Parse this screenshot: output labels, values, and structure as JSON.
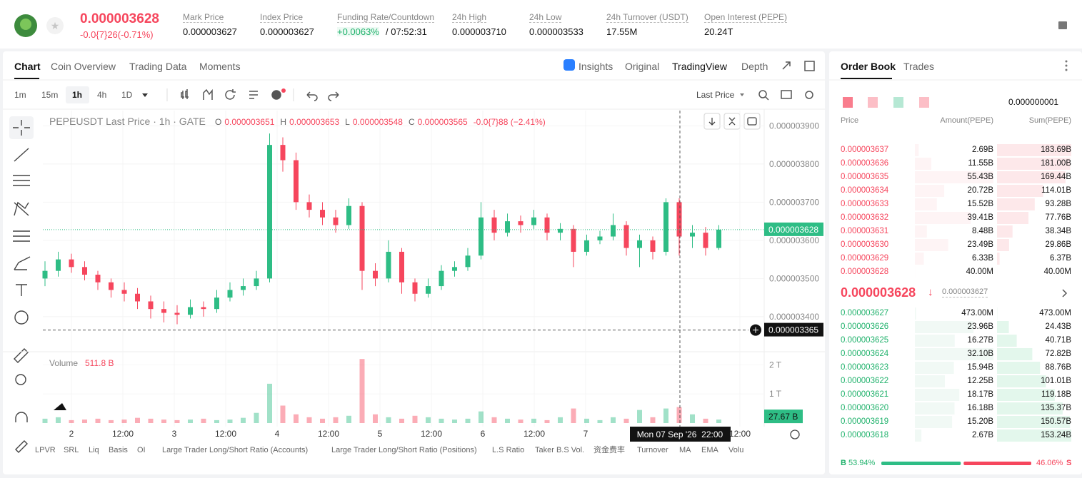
{
  "header": {
    "price": "0.000003628",
    "change": "-0.0{7}26(-0.71%)",
    "stats": [
      {
        "label": "Mark Price",
        "value": "0.000003627"
      },
      {
        "label": "Index Price",
        "value": "0.000003627"
      },
      {
        "label": "Funding Rate/Countdown",
        "value": "+0.0063%",
        "countdown": "/ 07:52:31"
      },
      {
        "label": "24h High",
        "value": "0.000003710"
      },
      {
        "label": "24h Low",
        "value": "0.000003533"
      },
      {
        "label": "24h Turnover (USDT)",
        "value": "17.55M"
      },
      {
        "label": "Open Interest (PEPE)",
        "value": "20.24T"
      }
    ]
  },
  "tabs": [
    "Chart",
    "Coin Overview",
    "Trading Data",
    "Moments"
  ],
  "views": [
    "Insights",
    "Original",
    "TradingView",
    "Depth"
  ],
  "intervals": [
    "1m",
    "15m",
    "1h",
    "4h",
    "1D"
  ],
  "price_source": "Last Price",
  "chart": {
    "type": "candlestick",
    "title": "PEPEUSDT Last Price · 1h · GATE",
    "ohlc_labels": [
      "O",
      "H",
      "L",
      "C"
    ],
    "ohlc_values": [
      "0.000003651",
      "0.000003653",
      "0.000003548",
      "0.000003565"
    ],
    "change": "-0.0{7}88 (−2.41%)",
    "up_color": "#2ebd85",
    "down_color": "#f6465d",
    "ylim": [
      3.31e-06,
      3.94e-06
    ],
    "yticks": [
      {
        "value": 3.4e-06,
        "label": "0.000003400"
      },
      {
        "value": 3.5e-06,
        "label": "0.000003500"
      },
      {
        "value": 3.6e-06,
        "label": "0.000003600"
      },
      {
        "value": 3.7e-06,
        "label": "0.000003700"
      },
      {
        "value": 3.8e-06,
        "label": "0.000003800"
      },
      {
        "value": 3.9e-06,
        "label": "0.000003900"
      }
    ],
    "candles": [
      [
        3.5e-06,
        3.545e-06,
        3.48e-06,
        3.52e-06
      ],
      [
        3.52e-06,
        3.57e-06,
        3.505e-06,
        3.55e-06
      ],
      [
        3.55e-06,
        3.565e-06,
        3.515e-06,
        3.53e-06
      ],
      [
        3.53e-06,
        3.545e-06,
        3.495e-06,
        3.51e-06
      ],
      [
        3.51e-06,
        3.52e-06,
        3.47e-06,
        3.49e-06
      ],
      [
        3.49e-06,
        3.5e-06,
        3.45e-06,
        3.47e-06
      ],
      [
        3.47e-06,
        3.49e-06,
        3.44e-06,
        3.46e-06
      ],
      [
        3.46e-06,
        3.475e-06,
        3.42e-06,
        3.44e-06
      ],
      [
        3.44e-06,
        3.455e-06,
        3.395e-06,
        3.42e-06
      ],
      [
        3.42e-06,
        3.44e-06,
        3.385e-06,
        3.41e-06
      ],
      [
        3.41e-06,
        3.43e-06,
        3.38e-06,
        3.405e-06
      ],
      [
        3.405e-06,
        3.445e-06,
        3.395e-06,
        3.425e-06
      ],
      [
        3.425e-06,
        3.44e-06,
        3.4e-06,
        3.42e-06
      ],
      [
        3.42e-06,
        3.47e-06,
        3.41e-06,
        3.45e-06
      ],
      [
        3.45e-06,
        3.49e-06,
        3.44e-06,
        3.47e-06
      ],
      [
        3.47e-06,
        3.5e-06,
        3.455e-06,
        3.48e-06
      ],
      [
        3.48e-06,
        3.52e-06,
        3.47e-06,
        3.5e-06
      ],
      [
        3.5e-06,
        3.88e-06,
        3.49e-06,
        3.85e-06
      ],
      [
        3.85e-06,
        3.87e-06,
        3.78e-06,
        3.81e-06
      ],
      [
        3.81e-06,
        3.83e-06,
        3.68e-06,
        3.7e-06
      ],
      [
        3.7e-06,
        3.72e-06,
        3.66e-06,
        3.68e-06
      ],
      [
        3.68e-06,
        3.7e-06,
        3.64e-06,
        3.66e-06
      ],
      [
        3.66e-06,
        3.68e-06,
        3.62e-06,
        3.64e-06
      ],
      [
        3.64e-06,
        3.71e-06,
        3.63e-06,
        3.69e-06
      ],
      [
        3.69e-06,
        3.7e-06,
        3.47e-06,
        3.52e-06
      ],
      [
        3.52e-06,
        3.54e-06,
        3.48e-06,
        3.5e-06
      ],
      [
        3.5e-06,
        3.6e-06,
        3.49e-06,
        3.57e-06
      ],
      [
        3.57e-06,
        3.58e-06,
        3.46e-06,
        3.49e-06
      ],
      [
        3.49e-06,
        3.5e-06,
        3.44e-06,
        3.46e-06
      ],
      [
        3.46e-06,
        3.5e-06,
        3.45e-06,
        3.48e-06
      ],
      [
        3.48e-06,
        3.535e-06,
        3.47e-06,
        3.52e-06
      ],
      [
        3.52e-06,
        3.545e-06,
        3.505e-06,
        3.53e-06
      ],
      [
        3.53e-06,
        3.58e-06,
        3.52e-06,
        3.56e-06
      ],
      [
        3.56e-06,
        3.7e-06,
        3.55e-06,
        3.66e-06
      ],
      [
        3.66e-06,
        3.68e-06,
        3.6e-06,
        3.62e-06
      ],
      [
        3.62e-06,
        3.67e-06,
        3.61e-06,
        3.65e-06
      ],
      [
        3.65e-06,
        3.665e-06,
        3.62e-06,
        3.64e-06
      ],
      [
        3.64e-06,
        3.68e-06,
        3.63e-06,
        3.66e-06
      ],
      [
        3.66e-06,
        3.67e-06,
        3.6e-06,
        3.62e-06
      ],
      [
        3.62e-06,
        3.645e-06,
        3.6e-06,
        3.63e-06
      ],
      [
        3.63e-06,
        3.64e-06,
        3.53e-06,
        3.57e-06
      ],
      [
        3.57e-06,
        3.615e-06,
        3.56e-06,
        3.6e-06
      ],
      [
        3.6e-06,
        3.625e-06,
        3.59e-06,
        3.61e-06
      ],
      [
        3.61e-06,
        3.67e-06,
        3.6e-06,
        3.64e-06
      ],
      [
        3.64e-06,
        3.65e-06,
        3.56e-06,
        3.58e-06
      ],
      [
        3.58e-06,
        3.615e-06,
        3.53e-06,
        3.6e-06
      ],
      [
        3.6e-06,
        3.61e-06,
        3.55e-06,
        3.57e-06
      ],
      [
        3.57e-06,
        3.71e-06,
        3.56e-06,
        3.7e-06
      ],
      [
        3.7e-06,
        3.71e-06,
        3.56e-06,
        3.61e-06
      ],
      [
        3.61e-06,
        3.64e-06,
        3.58e-06,
        3.62e-06
      ],
      [
        3.62e-06,
        3.635e-06,
        3.56e-06,
        3.58e-06
      ],
      [
        3.58e-06,
        3.64e-06,
        3.575e-06,
        3.628e-06
      ]
    ],
    "last_price": {
      "value": 3.628e-06,
      "label": "0.000003628"
    },
    "crosshair": {
      "value": 3.365e-06,
      "label": "0.000003365",
      "time": "Mon 07 Sep '26  22:00"
    },
    "x_labels": [
      "2",
      "12:00",
      "3",
      "12:00",
      "4",
      "12:00",
      "5",
      "12:00",
      "6",
      "12:00",
      "7",
      "12:00"
    ],
    "volume": {
      "title": "Volume",
      "current": "511.8 B",
      "last": "27.67 B",
      "ylim": [
        0,
        2.4
      ],
      "yticks": [
        {
          "value": 1,
          "label": "1 T"
        },
        {
          "value": 2,
          "label": "2 T"
        }
      ],
      "values": [
        0.15,
        0.2,
        0.1,
        0.12,
        0.15,
        0.1,
        0.12,
        0.18,
        0.15,
        0.12,
        0.1,
        0.12,
        0.15,
        0.1,
        0.12,
        0.18,
        0.35,
        1.35,
        0.6,
        0.3,
        0.2,
        0.15,
        0.2,
        0.25,
        2.2,
        0.3,
        0.2,
        0.15,
        0.25,
        0.2,
        0.15,
        0.12,
        0.15,
        0.4,
        0.2,
        0.15,
        0.12,
        0.15,
        0.1,
        0.2,
        0.5,
        0.15,
        0.1,
        0.2,
        0.15,
        0.45,
        0.2,
        0.5,
        0.55,
        0.3,
        0.15,
        0.12
      ]
    }
  },
  "indicators": [
    "LPVR",
    "SRL",
    "Liq",
    "Basis",
    "OI",
    "Large Trader Long/Short Ratio (Accounts)",
    "Large Trader Long/Short Ratio (Positions)",
    "L.S Ratio",
    "Taker B.S Vol.",
    "资金费率",
    "Turnover",
    "MA",
    "EMA",
    "Volu"
  ],
  "order_book": {
    "tabs": [
      "Order Book",
      "Trades"
    ],
    "precision": "0.000000001",
    "columns": [
      "Price",
      "Amount(PEPE)",
      "Sum(PEPE)"
    ],
    "asks": [
      [
        "0.000003637",
        "2.69B",
        "183.69B"
      ],
      [
        "0.000003636",
        "11.55B",
        "181.00B"
      ],
      [
        "0.000003635",
        "55.43B",
        "169.44B"
      ],
      [
        "0.000003634",
        "20.72B",
        "114.01B"
      ],
      [
        "0.000003633",
        "15.52B",
        "93.28B"
      ],
      [
        "0.000003632",
        "39.41B",
        "77.76B"
      ],
      [
        "0.000003631",
        "8.48B",
        "38.34B"
      ],
      [
        "0.000003630",
        "23.49B",
        "29.86B"
      ],
      [
        "0.000003629",
        "6.33B",
        "6.37B"
      ],
      [
        "0.000003628",
        "40.00M",
        "40.00M"
      ]
    ],
    "mid_price": "0.000003628",
    "mark_price": "0.000003627",
    "bids": [
      [
        "0.000003627",
        "473.00M",
        "473.00M"
      ],
      [
        "0.000003626",
        "23.96B",
        "24.43B"
      ],
      [
        "0.000003625",
        "16.27B",
        "40.71B"
      ],
      [
        "0.000003624",
        "32.10B",
        "72.82B"
      ],
      [
        "0.000003623",
        "15.94B",
        "88.76B"
      ],
      [
        "0.000003622",
        "12.25B",
        "101.01B"
      ],
      [
        "0.000003621",
        "18.17B",
        "119.18B"
      ],
      [
        "0.000003620",
        "16.18B",
        "135.37B"
      ],
      [
        "0.000003619",
        "15.20B",
        "150.57B"
      ],
      [
        "0.000003618",
        "2.67B",
        "153.24B"
      ]
    ],
    "buy_label": "B",
    "buy_ratio": "53.94%",
    "sell_ratio": "46.06%",
    "sell_label": "S"
  }
}
